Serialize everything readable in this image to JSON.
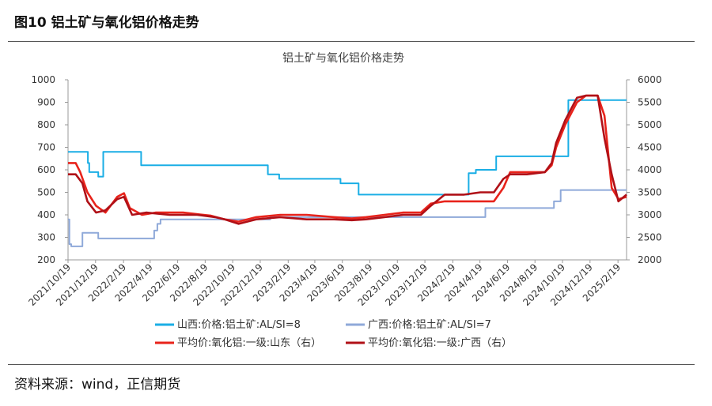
{
  "figure": {
    "title": "图10  铝土矿与氧化铝价格走势",
    "source": "资料来源：wind，正信期货"
  },
  "chart_data": {
    "type": "line",
    "title": "铝土矿与氧化铝价格走势",
    "x_ticks": [
      "2021/10/19",
      "2021/12/19",
      "2022/2/19",
      "2022/4/19",
      "2022/6/19",
      "2022/8/19",
      "2022/10/19",
      "2022/12/19",
      "2023/2/19",
      "2023/4/19",
      "2023/6/19",
      "2023/8/19",
      "2023/10/19",
      "2023/12/19",
      "2024/2/19",
      "2024/4/19",
      "2024/6/19",
      "2024/8/19",
      "2024/10/19",
      "2024/12/19",
      "2025/2/19"
    ],
    "x_range": [
      "2021/10/19",
      "2025/3/10"
    ],
    "y_left": {
      "range": [
        200,
        1000
      ],
      "ticks": [
        "200",
        "300",
        "400",
        "500",
        "600",
        "700",
        "800",
        "900",
        "1000"
      ]
    },
    "y_right": {
      "range": [
        2000,
        6000
      ],
      "ticks": [
        "2000",
        "2500",
        "3000",
        "3500",
        "4000",
        "4500",
        "5000",
        "5500",
        "6000"
      ]
    },
    "grid": false,
    "legend_position": "bottom",
    "colors": {
      "shanxi": "#1aaee5",
      "guangxi": "#8fa9d9",
      "ao_shandong": "#e8231b",
      "ao_guangxi": "#b01017"
    },
    "series": [
      {
        "name": "山西:价格:铝土矿:AL/SI=8",
        "axis": "left",
        "step": true,
        "points": [
          [
            "2021/10/19",
            680
          ],
          [
            "2021/12/2",
            630
          ],
          [
            "2021/12/5",
            590
          ],
          [
            "2021/12/25",
            570
          ],
          [
            "2022/1/5",
            680
          ],
          [
            "2022/3/30",
            620
          ],
          [
            "2023/1/5",
            580
          ],
          [
            "2023/1/30",
            560
          ],
          [
            "2023/6/15",
            540
          ],
          [
            "2023/7/25",
            490
          ],
          [
            "2024/3/25",
            585
          ],
          [
            "2024/4/10",
            600
          ],
          [
            "2024/5/25",
            660
          ],
          [
            "2024/11/1",
            910
          ],
          [
            "2025/3/10",
            910
          ]
        ]
      },
      {
        "name": "广西:价格:铝土矿:AL/SI=7",
        "axis": "left",
        "step": true,
        "points": [
          [
            "2021/10/19",
            380
          ],
          [
            "2021/10/22",
            270
          ],
          [
            "2021/10/26",
            260
          ],
          [
            "2021/11/20",
            320
          ],
          [
            "2021/12/25",
            295
          ],
          [
            "2022/4/28",
            330
          ],
          [
            "2022/5/5",
            360
          ],
          [
            "2022/5/12",
            380
          ],
          [
            "2023/1/10",
            390
          ],
          [
            "2024/5/1",
            430
          ],
          [
            "2024/9/30",
            460
          ],
          [
            "2024/10/15",
            510
          ],
          [
            "2025/3/10",
            510
          ]
        ]
      },
      {
        "name": "平均价:氧化铝:一级:山东（右）",
        "axis": "right",
        "points": [
          [
            "2021/10/19",
            4150
          ],
          [
            "2021/11/5",
            4150
          ],
          [
            "2021/11/15",
            3950
          ],
          [
            "2021/12/1",
            3500
          ],
          [
            "2021/12/20",
            3200
          ],
          [
            "2022/1/10",
            3050
          ],
          [
            "2022/2/5",
            3400
          ],
          [
            "2022/2/20",
            3480
          ],
          [
            "2022/3/5",
            3150
          ],
          [
            "2022/4/1",
            3000
          ],
          [
            "2022/5/1",
            3050
          ],
          [
            "2022/7/1",
            3050
          ],
          [
            "2022/9/1",
            2980
          ],
          [
            "2022/10/1",
            2900
          ],
          [
            "2022/11/1",
            2850
          ],
          [
            "2022/12/10",
            2950
          ],
          [
            "2023/2/1",
            3000
          ],
          [
            "2023/4/1",
            3000
          ],
          [
            "2023/6/1",
            2950
          ],
          [
            "2023/7/10",
            2920
          ],
          [
            "2023/8/10",
            2950
          ],
          [
            "2023/9/20",
            3000
          ],
          [
            "2023/11/1",
            3050
          ],
          [
            "2023/12/10",
            3050
          ],
          [
            "2024/1/1",
            3250
          ],
          [
            "2024/2/1",
            3300
          ],
          [
            "2024/3/15",
            3300
          ],
          [
            "2024/4/20",
            3300
          ],
          [
            "2024/5/20",
            3300
          ],
          [
            "2024/6/10",
            3600
          ],
          [
            "2024/6/25",
            3950
          ],
          [
            "2024/8/1",
            3950
          ],
          [
            "2024/9/10",
            3950
          ],
          [
            "2024/9/25",
            4100
          ],
          [
            "2024/10/5",
            4500
          ],
          [
            "2024/10/25",
            5000
          ],
          [
            "2024/11/20",
            5500
          ],
          [
            "2024/12/10",
            5650
          ],
          [
            "2025/1/5",
            5650
          ],
          [
            "2025/1/20",
            5200
          ],
          [
            "2025/2/5",
            3600
          ],
          [
            "2025/2/20",
            3350
          ],
          [
            "2025/3/10",
            3400
          ]
        ]
      },
      {
        "name": "平均价:氧化铝:一级:广西（右）",
        "axis": "right",
        "points": [
          [
            "2021/10/19",
            3900
          ],
          [
            "2021/11/5",
            3900
          ],
          [
            "2021/11/20",
            3700
          ],
          [
            "2021/12/1",
            3300
          ],
          [
            "2021/12/20",
            3050
          ],
          [
            "2022/1/10",
            3100
          ],
          [
            "2022/2/5",
            3350
          ],
          [
            "2022/2/20",
            3400
          ],
          [
            "2022/3/10",
            3000
          ],
          [
            "2022/4/10",
            3050
          ],
          [
            "2022/6/1",
            3000
          ],
          [
            "2022/8/1",
            3000
          ],
          [
            "2022/9/10",
            2950
          ],
          [
            "2022/10/1",
            2900
          ],
          [
            "2022/11/1",
            2800
          ],
          [
            "2022/12/10",
            2900
          ],
          [
            "2023/2/1",
            2950
          ],
          [
            "2023/4/1",
            2900
          ],
          [
            "2023/6/1",
            2900
          ],
          [
            "2023/7/10",
            2880
          ],
          [
            "2023/8/10",
            2900
          ],
          [
            "2023/9/20",
            2950
          ],
          [
            "2023/11/1",
            3000
          ],
          [
            "2023/12/10",
            3000
          ],
          [
            "2024/1/1",
            3200
          ],
          [
            "2024/2/1",
            3450
          ],
          [
            "2024/3/15",
            3450
          ],
          [
            "2024/4/20",
            3500
          ],
          [
            "2024/5/20",
            3500
          ],
          [
            "2024/6/10",
            3800
          ],
          [
            "2024/6/25",
            3900
          ],
          [
            "2024/8/1",
            3900
          ],
          [
            "2024/9/10",
            3950
          ],
          [
            "2024/9/25",
            4150
          ],
          [
            "2024/10/5",
            4600
          ],
          [
            "2024/10/25",
            5100
          ],
          [
            "2024/11/20",
            5600
          ],
          [
            "2024/12/10",
            5650
          ],
          [
            "2025/1/5",
            5650
          ],
          [
            "2025/1/20",
            4700
          ],
          [
            "2025/2/5",
            3900
          ],
          [
            "2025/2/20",
            3300
          ],
          [
            "2025/3/10",
            3450
          ]
        ]
      }
    ]
  }
}
